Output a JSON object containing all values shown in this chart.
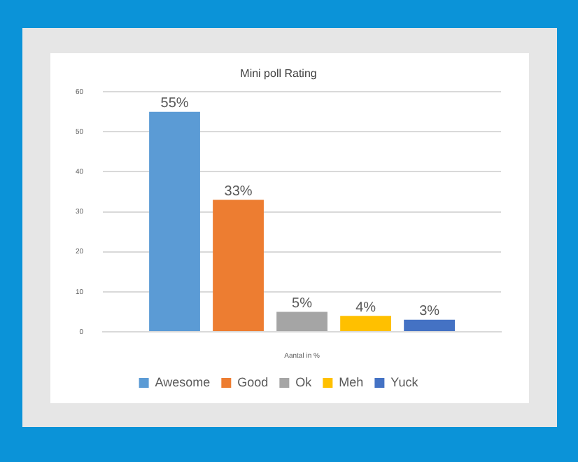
{
  "chart_data": {
    "type": "bar",
    "title": "Mini poll Rating",
    "xlabel": "Aantal in %",
    "categories": [
      null
    ],
    "series": [
      {
        "name": "Awesome",
        "color": "#5b9bd5",
        "values": [
          55
        ],
        "value_labels": [
          "55%"
        ]
      },
      {
        "name": "Good",
        "color": "#ed7d31",
        "values": [
          33
        ],
        "value_labels": [
          "33%"
        ]
      },
      {
        "name": "Ok",
        "color": "#a5a5a5",
        "values": [
          5
        ],
        "value_labels": [
          "5%"
        ]
      },
      {
        "name": "Meh",
        "color": "#ffc000",
        "values": [
          4
        ],
        "value_labels": [
          "4%"
        ]
      },
      {
        "name": "Yuck",
        "color": "#4472c4",
        "values": [
          3
        ],
        "value_labels": [
          "3%"
        ]
      }
    ],
    "ylim": [
      0,
      60
    ],
    "yticks": [
      0,
      10,
      20,
      30,
      40,
      50,
      60
    ],
    "grid": "y",
    "legend": "bottom"
  }
}
